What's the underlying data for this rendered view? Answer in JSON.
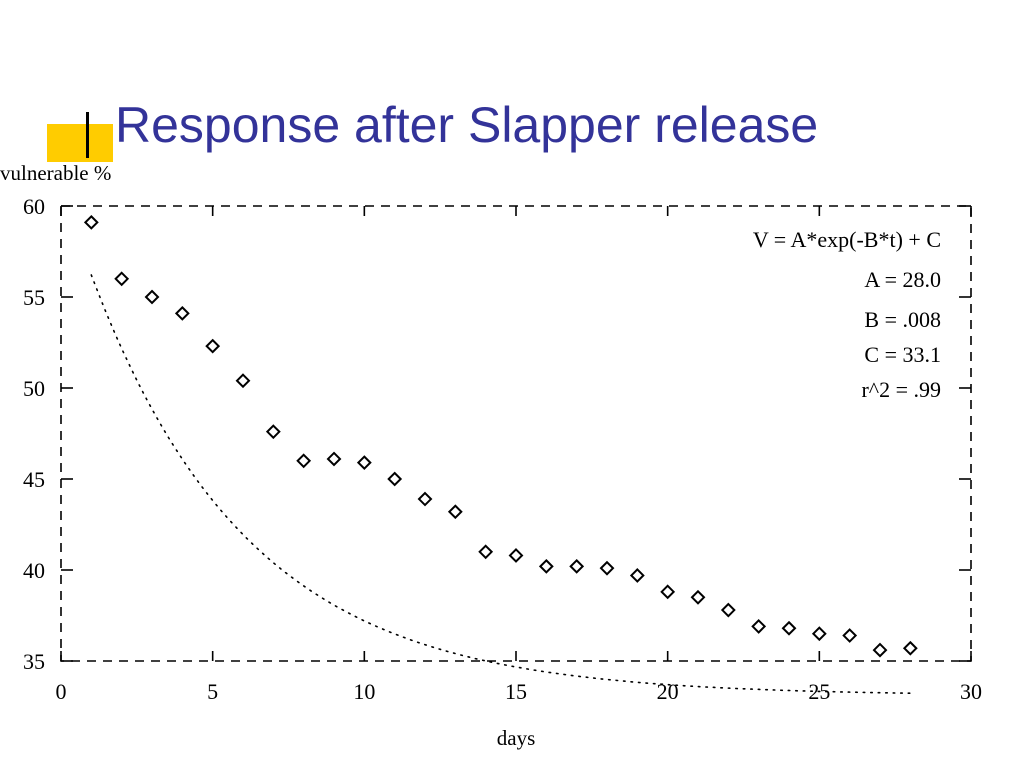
{
  "slide": {
    "title": "Response after Slapper release",
    "accent_color": "#ffcc00",
    "title_color": "#333399"
  },
  "chart_data": {
    "type": "scatter",
    "xlabel": "days",
    "ylabel": "vulnerable %",
    "xlim": [
      0,
      30
    ],
    "ylim": [
      35,
      60
    ],
    "x_ticks": [
      0,
      5,
      10,
      15,
      20,
      25,
      30
    ],
    "y_ticks": [
      35,
      40,
      45,
      50,
      55,
      60
    ],
    "grid": false,
    "marker": "diamond-outline",
    "series": [
      {
        "x": [
          1,
          2,
          3,
          4,
          5,
          6,
          7,
          8,
          9,
          10,
          11,
          12,
          13,
          14,
          15,
          16,
          17,
          18,
          19,
          20,
          21,
          22,
          23,
          24,
          25,
          26,
          27,
          28
        ],
        "y": [
          59.1,
          56.0,
          55.0,
          54.1,
          52.3,
          50.4,
          47.6,
          46.0,
          46.1,
          45.9,
          45.0,
          43.9,
          43.2,
          41.0,
          40.8,
          40.2,
          40.2,
          40.1,
          39.7,
          38.8,
          38.5,
          37.8,
          36.9,
          36.8,
          36.5,
          36.4,
          35.6,
          35.7
        ]
      }
    ],
    "fit": {
      "style": "dotted",
      "model": "exponential",
      "A": 28.0,
      "B": 0.008,
      "C": 33.1
    },
    "annotations": [
      "V = A*exp(-B*t) + C",
      "A = 28.0",
      "B = .008",
      "C = 33.1",
      "r^2 = .99"
    ],
    "annotation_placement": "top-right"
  }
}
